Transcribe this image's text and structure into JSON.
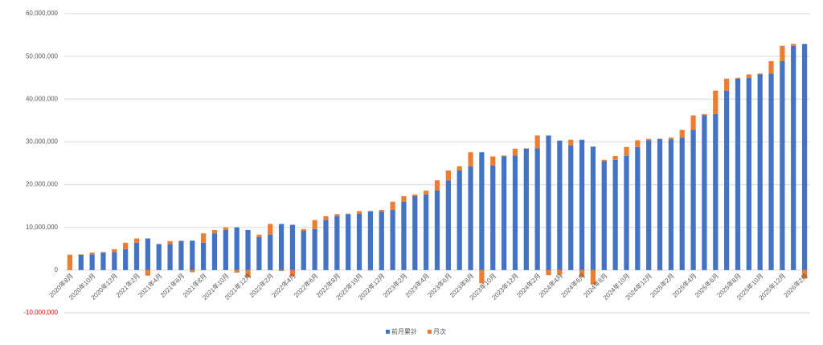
{
  "chart_data": {
    "type": "stacked_bar",
    "categories": [
      "2020年8月",
      null,
      "2020年10月",
      null,
      "2020年12月",
      null,
      "2021年2月",
      null,
      "2021年4月",
      null,
      "2021年6月",
      null,
      "2021年8月",
      null,
      "2021年10月",
      null,
      "2021年12月",
      null,
      "2022年2月",
      null,
      "2022年4月",
      null,
      "2022年6月",
      null,
      "2022年8月",
      null,
      "2022年10月",
      null,
      "2022年12月",
      null,
      "2023年2月",
      null,
      "2023年4月",
      null,
      "2023年6月",
      null,
      "2023年8月",
      null,
      "2023年10月",
      null,
      "2023年12月",
      null,
      "2024年2月",
      null,
      "2024年4月",
      null,
      "2024年6月",
      null,
      "2024年8月",
      null,
      "2024年10月",
      null,
      "2024年12月",
      null,
      "2025年2月",
      null,
      "2025年4月",
      null,
      "2025年6月",
      null,
      "2025年8月",
      null,
      "2025年10月",
      null,
      "2025年12月",
      null,
      "2026年2月"
    ],
    "series": [
      {
        "name": "前月累計",
        "color": "#4472c4",
        "values": [
          0,
          3600000,
          3700000,
          4100000,
          4200000,
          4900000,
          6400000,
          7400000,
          6100000,
          6100000,
          6800000,
          6900000,
          6400000,
          8600000,
          9400000,
          10000000,
          9400000,
          7700000,
          8300000,
          10800000,
          10600000,
          9200000,
          9600000,
          11700000,
          12600000,
          13100000,
          13200000,
          13800000,
          13700000,
          14100000,
          16000000,
          17300000,
          17700000,
          18600000,
          21000000,
          23300000,
          24300000,
          27600000,
          24500000,
          26600000,
          26800000,
          28400000,
          28500000,
          31500000,
          30300000,
          29200000,
          30500000,
          28900000,
          25500000,
          25800000,
          26700000,
          28800000,
          30400000,
          30700000,
          30600000,
          31000000,
          32800000,
          36200000,
          36500000,
          42000000,
          44800000,
          45000000,
          45800000,
          46000000,
          48900000,
          52500000,
          52900000
        ]
      },
      {
        "name": "月次",
        "color": "#ed7d31",
        "values": [
          3600000,
          100000,
          400000,
          100000,
          700000,
          1500000,
          1000000,
          -1300000,
          0,
          700000,
          100000,
          -500000,
          2200000,
          800000,
          600000,
          -600000,
          -1700000,
          600000,
          2500000,
          -200000,
          -1400000,
          400000,
          2100000,
          900000,
          500000,
          100000,
          600000,
          -100000,
          400000,
          1900000,
          1300000,
          400000,
          900000,
          2400000,
          2300000,
          1000000,
          3300000,
          -3100000,
          2100000,
          200000,
          1600000,
          100000,
          3000000,
          -1200000,
          -1100000,
          1300000,
          -1600000,
          -3400000,
          300000,
          900000,
          2100000,
          1600000,
          300000,
          -100000,
          400000,
          1800000,
          3400000,
          300000,
          5500000,
          2800000,
          200000,
          800000,
          200000,
          2900000,
          3600000,
          400000,
          -2000000
        ]
      }
    ],
    "ylim": [
      -10000000,
      60000000
    ],
    "yticks": [
      {
        "value": -10000000,
        "label": "-10,000,000"
      },
      0,
      {
        "value": 10000000,
        "label": "10,000,000"
      },
      {
        "value": 20000000,
        "label": "20,000,000"
      },
      {
        "value": 30000000,
        "label": "30,000,000"
      },
      {
        "value": 40000000,
        "label": "40,000,000"
      },
      {
        "value": 50000000,
        "label": "50,000,000"
      },
      {
        "value": 60000000,
        "label": "60,000,000"
      }
    ],
    "grid": true,
    "legend": "bottom",
    "negative_tick_color": "#ff0000"
  }
}
